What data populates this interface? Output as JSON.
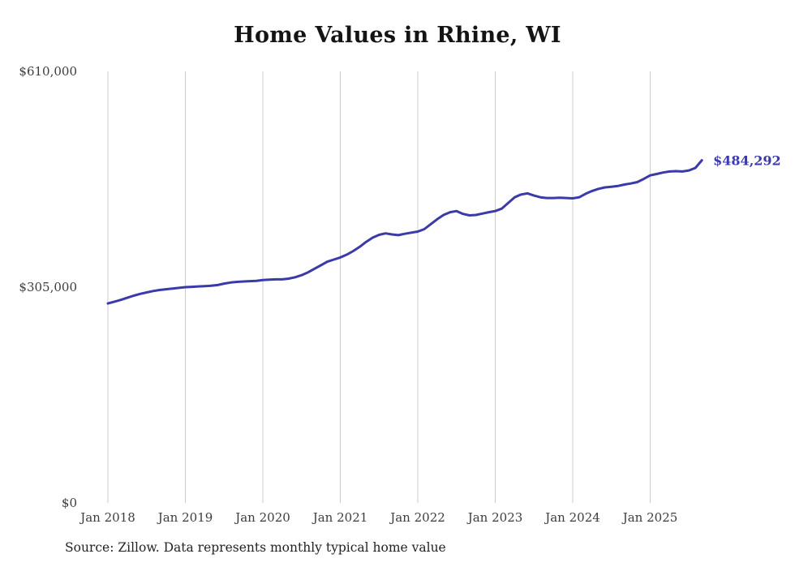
{
  "chart_data": {
    "type": "line",
    "title": "Home Values in Rhine, WI",
    "source": "Source: Zillow. Data represents monthly typical home value",
    "x_start": "Jan 2018",
    "x_end": "Sep 2025",
    "x_interval": "monthly",
    "x_tick_labels": [
      "Jan 2018",
      "Jan 2019",
      "Jan 2020",
      "Jan 2021",
      "Jan 2022",
      "Jan 2023",
      "Jan 2024",
      "Jan 2025"
    ],
    "y_ticks": [
      0,
      305000,
      610000
    ],
    "y_tick_labels": [
      "$0",
      "$305,000",
      "$610,000"
    ],
    "ylim": [
      0,
      610000
    ],
    "grid": "vertical-only",
    "legend": "none",
    "line_color": "#3a3aa8",
    "grid_color": "#cccccc",
    "axis_label_color": "#3d3d3d",
    "end_label": "$484,292",
    "final_value": 484292,
    "values": [
      282000,
      284500,
      287000,
      290000,
      293000,
      295500,
      297500,
      299500,
      301000,
      302000,
      303000,
      304000,
      305000,
      305500,
      306000,
      306500,
      307000,
      308000,
      310000,
      311500,
      312500,
      313000,
      313500,
      314000,
      315000,
      315500,
      316000,
      316000,
      317000,
      319000,
      322000,
      326000,
      331000,
      336000,
      341000,
      344000,
      347000,
      351000,
      356000,
      362000,
      369000,
      375000,
      379000,
      381000,
      379500,
      378500,
      380500,
      382000,
      383500,
      387000,
      394000,
      401000,
      407000,
      411000,
      412500,
      408500,
      406500,
      407000,
      409000,
      411000,
      412500,
      416000,
      424000,
      432000,
      436000,
      437500,
      434500,
      432000,
      431000,
      431000,
      431500,
      431000,
      430500,
      432000,
      437000,
      441000,
      444000,
      446000,
      447000,
      448000,
      450000,
      451500,
      453500,
      458000,
      463000,
      465000,
      467000,
      468500,
      469000,
      468500,
      470000,
      473500,
      484292
    ]
  }
}
